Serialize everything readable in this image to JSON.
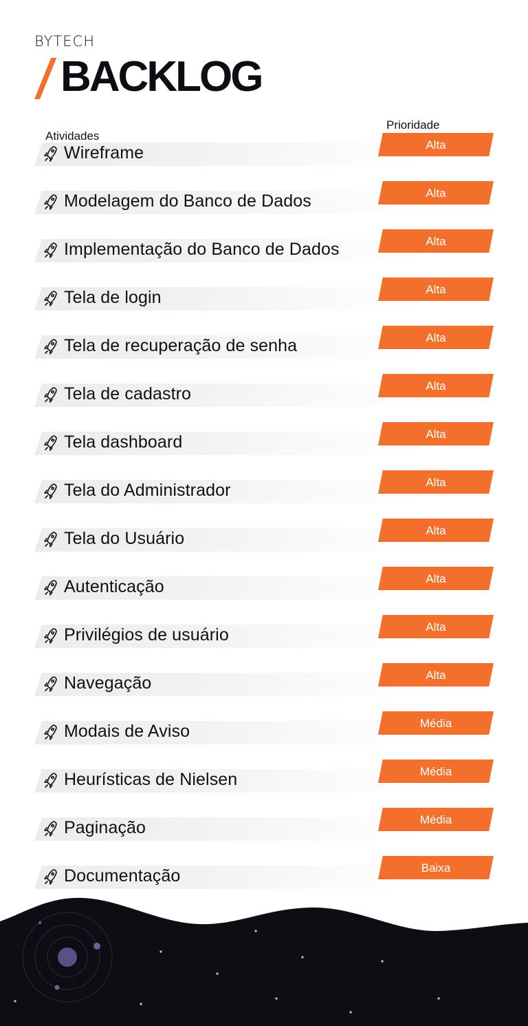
{
  "brand": "BYTECH",
  "title": "BACKLOG",
  "columns": {
    "activities": "Atividades",
    "priority": "Prioridade"
  },
  "colors": {
    "accent": "#f26f2c",
    "dark": "#0d0d14"
  },
  "icon": "rocket-icon",
  "items": [
    {
      "label": "Wireframe",
      "priority": "Alta"
    },
    {
      "label": "Modelagem do Banco de Dados",
      "priority": "Alta"
    },
    {
      "label": "Implementação do Banco de Dados",
      "priority": "Alta"
    },
    {
      "label": "Tela de login",
      "priority": "Alta"
    },
    {
      "label": "Tela de recuperação de senha",
      "priority": "Alta"
    },
    {
      "label": "Tela de cadastro",
      "priority": "Alta"
    },
    {
      "label": "Tela dashboard",
      "priority": "Alta"
    },
    {
      "label": "Tela do Administrador",
      "priority": "Alta"
    },
    {
      "label": "Tela do Usuário",
      "priority": "Alta"
    },
    {
      "label": "Autenticação",
      "priority": "Alta"
    },
    {
      "label": "Privilégios de usuário",
      "priority": "Alta"
    },
    {
      "label": "Navegação",
      "priority": "Alta"
    },
    {
      "label": "Modais de Aviso",
      "priority": "Média"
    },
    {
      "label": "Heurísticas de Nielsen",
      "priority": "Média"
    },
    {
      "label": "Paginação",
      "priority": "Média"
    },
    {
      "label": "Documentação",
      "priority": "Baixa"
    }
  ]
}
